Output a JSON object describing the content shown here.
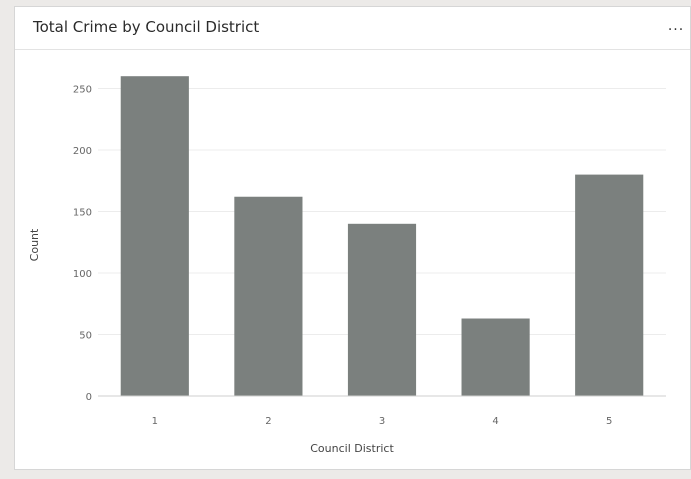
{
  "card": {
    "title": "Total Crime by Council District",
    "more_label": "...",
    "more_icon": "more-options-icon"
  },
  "chart_data": {
    "type": "bar",
    "title": "Total Crime by Council District",
    "xlabel": "Council District",
    "ylabel": "Count",
    "categories": [
      "1",
      "2",
      "3",
      "4",
      "5"
    ],
    "values": [
      260,
      162,
      140,
      63,
      180
    ],
    "ylim": [
      0,
      270
    ],
    "yticks": [
      0,
      50,
      100,
      150,
      200,
      250
    ],
    "grid": true,
    "bar_color": "#7b807e",
    "legend": "none"
  }
}
